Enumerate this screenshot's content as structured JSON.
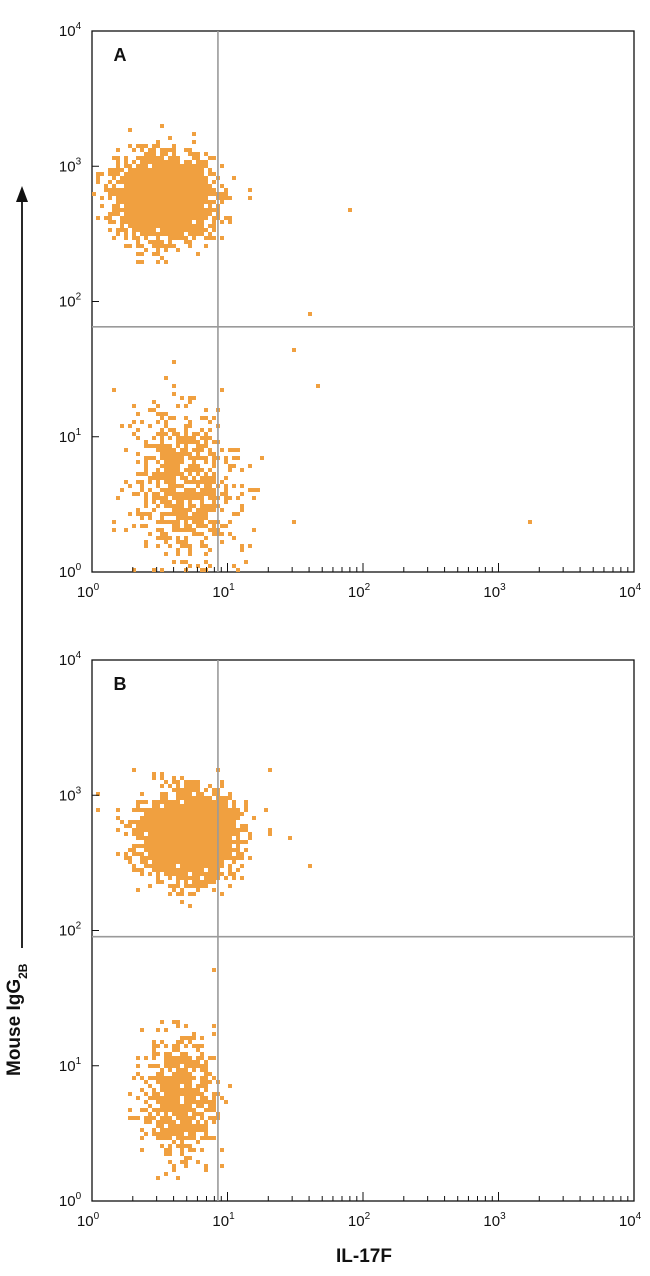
{
  "chart_data": [
    {
      "type": "scatter",
      "panel_label": "A",
      "x_scale": "log",
      "y_scale": "log",
      "xlim": [
        1,
        10000
      ],
      "ylim": [
        1,
        10000
      ],
      "x_ticks": [
        {
          "value": 1,
          "base": "10",
          "exp": "0"
        },
        {
          "value": 10,
          "base": "10",
          "exp": "1"
        },
        {
          "value": 100,
          "base": "10",
          "exp": "2"
        },
        {
          "value": 1000,
          "base": "10",
          "exp": "3"
        },
        {
          "value": 10000,
          "base": "10",
          "exp": "4"
        }
      ],
      "y_ticks": [
        {
          "value": 1,
          "base": "10",
          "exp": "0"
        },
        {
          "value": 10,
          "base": "10",
          "exp": "1"
        },
        {
          "value": 100,
          "base": "10",
          "exp": "2"
        },
        {
          "value": 1000,
          "base": "10",
          "exp": "3"
        },
        {
          "value": 10000,
          "base": "10",
          "exp": "4"
        }
      ],
      "quadrant_gate": {
        "x": 8.5,
        "y": 65
      },
      "color": "#f0a040",
      "populations": [
        {
          "x_center": 3.4,
          "y_center": 600,
          "x_spread": 0.17,
          "y_spread": 0.14,
          "count": 2600
        },
        {
          "x_center": 4.6,
          "y_center": 4.5,
          "x_spread": 0.19,
          "y_spread": 0.28,
          "count": 700
        }
      ],
      "outliers": [
        [
          1600,
          2.4
        ],
        [
          45,
          25
        ],
        [
          40,
          85
        ],
        [
          80,
          480
        ],
        [
          30,
          45
        ]
      ]
    },
    {
      "type": "scatter",
      "panel_label": "B",
      "x_scale": "log",
      "y_scale": "log",
      "xlim": [
        1,
        10000
      ],
      "ylim": [
        1,
        10000
      ],
      "x_ticks": [
        {
          "value": 1,
          "base": "10",
          "exp": "0"
        },
        {
          "value": 10,
          "base": "10",
          "exp": "1"
        },
        {
          "value": 100,
          "base": "10",
          "exp": "2"
        },
        {
          "value": 1000,
          "base": "10",
          "exp": "3"
        },
        {
          "value": 10000,
          "base": "10",
          "exp": "4"
        }
      ],
      "y_ticks": [
        {
          "value": 1,
          "base": "10",
          "exp": "0"
        },
        {
          "value": 10,
          "base": "10",
          "exp": "1"
        },
        {
          "value": 100,
          "base": "10",
          "exp": "2"
        },
        {
          "value": 1000,
          "base": "10",
          "exp": "3"
        },
        {
          "value": 10000,
          "base": "10",
          "exp": "4"
        }
      ],
      "quadrant_gate": {
        "x": 8.5,
        "y": 90
      },
      "color": "#f0a040",
      "populations": [
        {
          "x_center": 5.0,
          "y_center": 520,
          "x_spread": 0.17,
          "y_spread": 0.15,
          "count": 2600
        },
        {
          "x_center": 4.3,
          "y_center": 6.0,
          "x_spread": 0.13,
          "y_spread": 0.22,
          "count": 650
        }
      ],
      "outliers": [
        [
          40,
          320
        ],
        [
          28,
          490
        ],
        [
          20,
          1600
        ],
        [
          1.1,
          1050
        ],
        [
          1.1,
          800
        ]
      ]
    }
  ],
  "xlabel": "IL-17F",
  "ylabel_main": "Mouse IgG",
  "ylabel_subscript": "2B"
}
